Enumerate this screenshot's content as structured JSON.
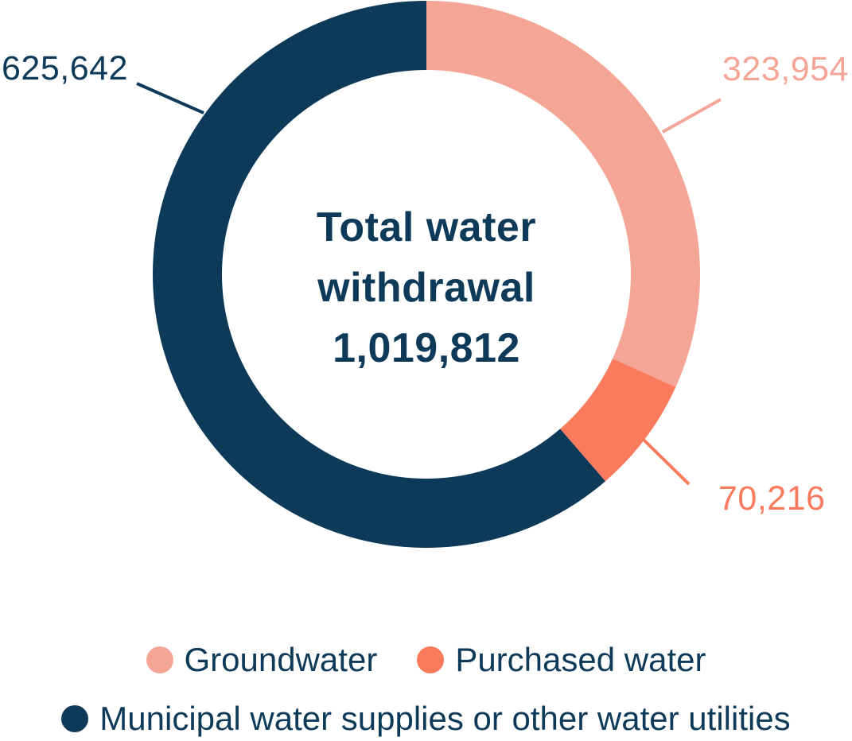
{
  "chart_data": {
    "type": "donut",
    "direction": "clockwise",
    "start_angle_deg": 0,
    "legend_position": "bottom",
    "background": "#FFFFFF",
    "text_color": "#0E3A59",
    "center": {
      "title": "Total water withdrawal",
      "value_display": "1,019,812",
      "value": 1019812
    },
    "segments": [
      {
        "name": "Groundwater",
        "value": 323954,
        "display_value": "323,954",
        "color": "#F4A596"
      },
      {
        "name": "Purchased water",
        "value": 70216,
        "display_value": "70,216",
        "color": "#FA7A5E"
      },
      {
        "name": "Municipal water supplies or other water utilities",
        "value": 625642,
        "display_value": "625,642",
        "color": "#0E3A59"
      }
    ]
  }
}
